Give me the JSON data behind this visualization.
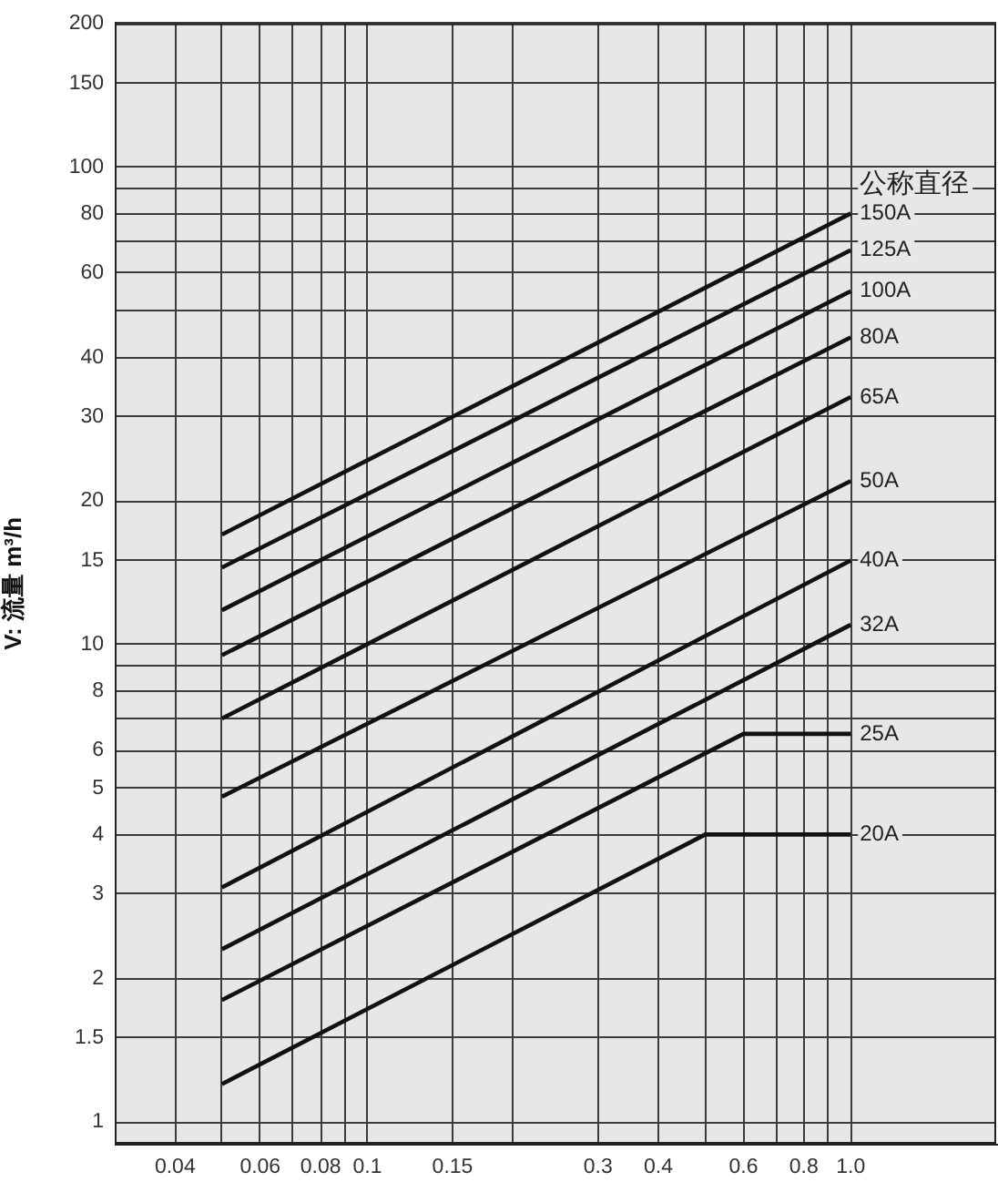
{
  "chart_data": {
    "type": "line",
    "ylabel": "V: 流量 m³/h",
    "legend_title": "公称直径",
    "log": "xy",
    "grid": true,
    "xlim": [
      0.03,
      2
    ],
    "ylim": [
      0.9,
      200
    ],
    "xticks": [
      0.04,
      {
        "value": 0.05,
        "label": null
      },
      0.06,
      {
        "value": 0.07,
        "label": null
      },
      0.08,
      {
        "value": 0.09,
        "label": null
      },
      0.1,
      0.15,
      {
        "value": 0.2,
        "label": null
      },
      0.3,
      0.4,
      {
        "value": 0.5,
        "label": null
      },
      0.6,
      {
        "value": 0.7,
        "label": null
      },
      0.8,
      {
        "value": 0.9,
        "label": null
      },
      {
        "value": 1,
        "label": "1.0"
      }
    ],
    "yticks": [
      1,
      1.5,
      2,
      3,
      4,
      5,
      6,
      {
        "value": 7,
        "label": null
      },
      8,
      {
        "value": 9,
        "label": null
      },
      10,
      15,
      20,
      30,
      40,
      {
        "value": 50,
        "label": null
      },
      60,
      {
        "value": 70,
        "label": null
      },
      80,
      {
        "value": 90,
        "label": null
      },
      100,
      150,
      200
    ],
    "series": [
      {
        "name": "150A",
        "color": "#111111",
        "x": [
          0.05,
          1
        ],
        "values": [
          17,
          80
        ]
      },
      {
        "name": "125A",
        "color": "#111111",
        "x": [
          0.05,
          1
        ],
        "values": [
          14.5,
          67
        ]
      },
      {
        "name": "100A",
        "color": "#111111",
        "x": [
          0.05,
          1
        ],
        "values": [
          11.8,
          55
        ]
      },
      {
        "name": "80A",
        "color": "#111111",
        "x": [
          0.05,
          1
        ],
        "values": [
          9.5,
          44
        ]
      },
      {
        "name": "65A",
        "color": "#111111",
        "x": [
          0.05,
          1
        ],
        "values": [
          7,
          33
        ]
      },
      {
        "name": "50A",
        "color": "#111111",
        "x": [
          0.05,
          1
        ],
        "values": [
          4.8,
          22
        ]
      },
      {
        "name": "40A",
        "color": "#111111",
        "x": [
          0.05,
          1
        ],
        "values": [
          3.1,
          15
        ]
      },
      {
        "name": "32A",
        "color": "#111111",
        "x": [
          0.05,
          1
        ],
        "values": [
          2.3,
          11
        ]
      },
      {
        "name": "25A",
        "color": "#111111",
        "x": [
          0.05,
          0.6,
          1
        ],
        "values": [
          1.8,
          6.5,
          6.5
        ]
      },
      {
        "name": "20A",
        "color": "#111111",
        "x": [
          0.05,
          0.5,
          1
        ],
        "values": [
          1.2,
          4,
          4
        ]
      }
    ]
  }
}
